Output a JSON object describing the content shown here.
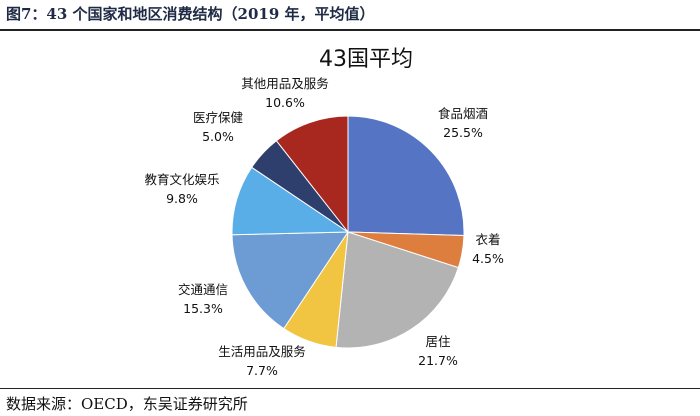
{
  "figure_title": "图7：43 个国家和地区消费结构（2019 年，平均值）",
  "source": "数据来源：OECD，东吴证券研究所",
  "chart_data": {
    "type": "pie",
    "title": "43国平均",
    "series": [
      {
        "name": "食品烟酒",
        "value": 25.5,
        "label": "25.5%",
        "color": "#5574c4"
      },
      {
        "name": "衣着",
        "value": 4.5,
        "label": "4.5%",
        "color": "#dd7e3f"
      },
      {
        "name": "居住",
        "value": 21.7,
        "label": "21.7%",
        "color": "#b3b3b3"
      },
      {
        "name": "生活用品及服务",
        "value": 7.7,
        "label": "7.7%",
        "color": "#f1c441"
      },
      {
        "name": "交通通信",
        "value": 15.3,
        "label": "15.3%",
        "color": "#6d9bd3"
      },
      {
        "name": "教育文化娱乐",
        "value": 9.8,
        "label": "9.8%",
        "color": "#5aaee8"
      },
      {
        "name": "医疗保健",
        "value": 5.0,
        "label": "5.0%",
        "color": "#2e3f6e"
      },
      {
        "name": "其他用品及服务",
        "value": 10.6,
        "label": "10.6%",
        "color": "#a8281f"
      }
    ]
  }
}
